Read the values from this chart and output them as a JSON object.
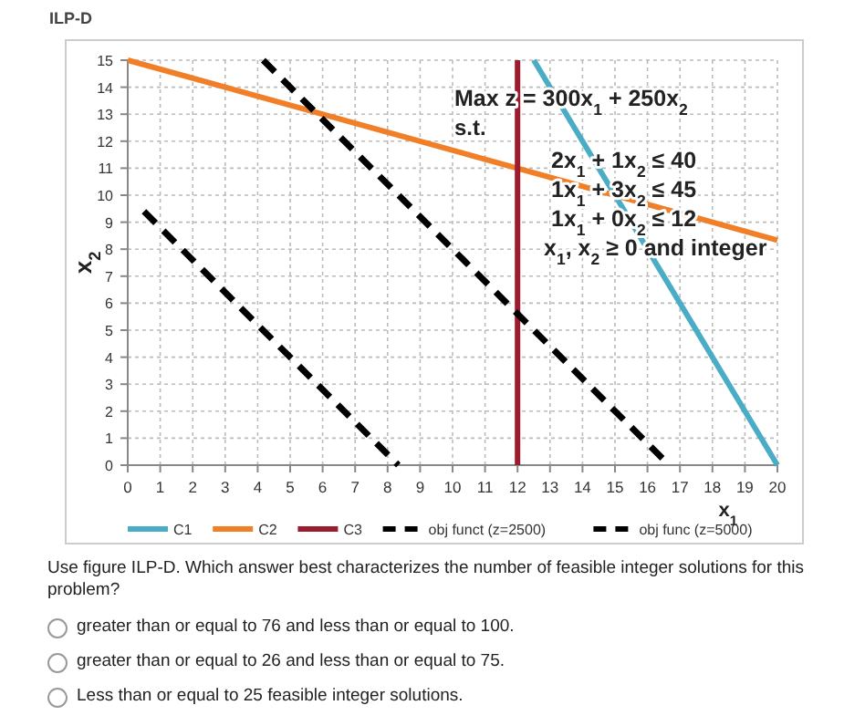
{
  "chart_data": {
    "type": "line",
    "title": "ILP-D",
    "xlabel": "x$_{1}$",
    "ylabel": "x$_{2}$",
    "xlim": [
      0,
      20
    ],
    "ylim": [
      0,
      15
    ],
    "xticks": [
      0,
      1,
      2,
      3,
      4,
      5,
      6,
      7,
      8,
      9,
      10,
      11,
      12,
      13,
      14,
      15,
      16,
      17,
      18,
      19,
      20
    ],
    "yticks": [
      0,
      1,
      2,
      3,
      4,
      5,
      6,
      7,
      8,
      9,
      10,
      11,
      12,
      13,
      14,
      15
    ],
    "grid": true,
    "legend": "bottom",
    "series": [
      {
        "name": "C1",
        "color": "#4bacc6",
        "line_style": "solid",
        "x": [
          12.5,
          20
        ],
        "values": [
          15,
          0
        ]
      },
      {
        "name": "C2",
        "color": "#f07f27",
        "line_style": "solid",
        "x": [
          0,
          20
        ],
        "values": [
          15,
          8.33
        ]
      },
      {
        "name": "C3",
        "color": "#9b1c2e",
        "line_style": "solid",
        "x": [
          12,
          12
        ],
        "values": [
          0,
          15
        ]
      },
      {
        "name": "obj funct (z=2500)",
        "color": "#000000",
        "line_style": "dashed",
        "x": [
          0.5,
          8.33
        ],
        "values": [
          9.4,
          0
        ]
      },
      {
        "name": "obj func (z=5000)",
        "color": "#000000",
        "line_style": "dashed",
        "x": [
          4.17,
          16.67
        ],
        "values": [
          15,
          0
        ]
      }
    ],
    "annotations": [
      "Max z = 300x$_{1}$ + 250x$_{2}$",
      "s.t.",
      "2x$_{1}$ + 1x$_{2}$ ≤ 40",
      "1x$_{1}$ + 3x$_{2}$ ≤ 45",
      "1x$_{1}$ + 0x$_{2}$ ≤ 12",
      "x$_{1}$, x$_{2}$ ≥ 0 and integer",
      "Use figure ILP-D. Which answer best characterizes the number of feasible integer solutions for this problem?",
      "greater than or equal to 76 and less than or equal to 100.",
      "greater than or equal to 26 and less than or equal to 75.",
      "Less than or equal to 25 feasible integer solutions."
    ]
  }
}
